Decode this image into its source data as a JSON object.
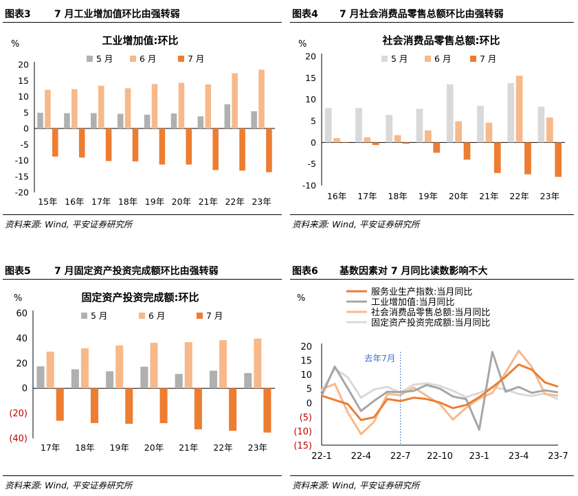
{
  "panels": [
    {
      "label": "图表3",
      "heading": "7 月工业增加值环比由强转弱",
      "source": "资料来源: Wind, 平安证券研究所",
      "chart_data": {
        "type": "bar",
        "title": "工业增加值:环比",
        "unit": "%",
        "categories": [
          "15年",
          "16年",
          "17年",
          "18年",
          "19年",
          "20年",
          "21年",
          "22年",
          "23年"
        ],
        "series": [
          {
            "name": "5 月",
            "color": "#b0b0b0",
            "values": [
              4.9,
              4.8,
              4.8,
              4.6,
              4.3,
              4.7,
              3.8,
              7.6,
              5.4
            ]
          },
          {
            "name": "6 月",
            "color": "#f7b98a",
            "values": [
              12.1,
              12.3,
              13.4,
              12.6,
              13.9,
              14.3,
              13.8,
              17.3,
              18.4
            ]
          },
          {
            "name": "7 月",
            "color": "#ed7d31",
            "values": [
              -8.8,
              -9.1,
              -10.2,
              -10.3,
              -11.3,
              -11.3,
              -13.0,
              -13.2,
              -13.7
            ]
          }
        ],
        "ylim": [
          -20,
          20
        ],
        "yticks": [
          "20",
          "15",
          "10",
          "5",
          "0",
          "-5",
          "-10",
          "-15",
          "-20"
        ]
      }
    },
    {
      "label": "图表4",
      "heading": "7 月社会消费品零售总额环比由强转弱",
      "source": "资料来源: Wind, 平安证券研究所",
      "chart_data": {
        "type": "bar",
        "title": "社会消费品零售总额:环比",
        "unit": "%",
        "categories": [
          "16年",
          "17年",
          "18年",
          "19年",
          "20年",
          "21年",
          "22年",
          "23年"
        ],
        "series": [
          {
            "name": "5 月",
            "color": "#d9d9d9",
            "values": [
              8.0,
              8.0,
              6.4,
              7.8,
              13.5,
              8.5,
              13.8,
              8.3
            ]
          },
          {
            "name": "6 月",
            "color": "#f7b98a",
            "values": [
              1.0,
              1.2,
              1.7,
              2.8,
              4.9,
              4.6,
              15.5,
              5.8
            ]
          },
          {
            "name": "7 月",
            "color": "#ed7d31",
            "values": [
              0,
              -0.6,
              -0.3,
              -2.4,
              -4.0,
              -7.1,
              -7.4,
              -8.0
            ]
          }
        ],
        "ylim": [
          -10,
          20
        ],
        "yticks": [
          "20",
          "15",
          "10",
          "5",
          "0",
          "-5",
          "-10"
        ]
      }
    },
    {
      "label": "图表5",
      "heading": "7 月固定资产投资完成额环比由强转弱",
      "source": "资料来源: Wind, 平安证券研究所",
      "chart_data": {
        "type": "bar",
        "title": "固定资产投资完成额:环比",
        "unit": "%",
        "categories": [
          "17年",
          "18年",
          "19年",
          "20年",
          "21年",
          "22年",
          "23年"
        ],
        "series": [
          {
            "name": "5 月",
            "color": "#b0b0b0",
            "values": [
              17.6,
              15.2,
              13.6,
              17.3,
              11.5,
              14.1,
              12.2
            ]
          },
          {
            "name": "6 月",
            "color": "#f7b98a",
            "values": [
              29.3,
              32.0,
              34.3,
              36.4,
              36.9,
              38.5,
              39.8
            ]
          },
          {
            "name": "7 月",
            "color": "#ed7d31",
            "values": [
              -26.0,
              -27.8,
              -28.4,
              -27.9,
              -32.8,
              -34.0,
              -35.4
            ]
          }
        ],
        "ylim": [
          -40,
          60
        ],
        "yticks": [
          "60",
          "40",
          "20",
          "0",
          "(20)",
          "(40)"
        ]
      }
    },
    {
      "label": "图表6",
      "heading": "基数因素对 7 月同比读数影响不大",
      "source": "资料来源: Wind, 平安证券研究所",
      "chart_data": {
        "type": "line",
        "unit": "%",
        "annotation": "去年7月",
        "x": [
          "22-1",
          "22-2",
          "22-3",
          "22-4",
          "22-5",
          "22-6",
          "22-7",
          "22-8",
          "22-9",
          "22-10",
          "22-11",
          "22-12",
          "23-1",
          "23-2",
          "23-3",
          "23-4",
          "23-5",
          "23-6",
          "23-7"
        ],
        "xticks": [
          "22-1",
          "22-4",
          "22-7",
          "22-10",
          "23-1",
          "23-4",
          "23-7"
        ],
        "ylim": [
          -15,
          20
        ],
        "yticks": [
          "20",
          "15",
          "10",
          "5",
          "0",
          "(5)",
          "(10)",
          "(15)"
        ],
        "series": [
          {
            "name": "服务业生产指数:当月同比",
            "color": "#ed7d31",
            "values": [
              2.5,
              1.0,
              -0.5,
              -6.1,
              -5.1,
              1.3,
              0.6,
              1.8,
              1.3,
              0.1,
              -1.9,
              -0.8,
              2.0,
              5.5,
              9.2,
              13.5,
              11.7,
              7.2,
              5.7
            ]
          },
          {
            "name": "工业增加值:当月同比",
            "color": "#a6a6a6",
            "values": [
              2.5,
              12.8,
              5.0,
              -2.9,
              0.7,
              3.9,
              3.8,
              4.2,
              6.3,
              5.0,
              2.2,
              1.3,
              -9.5,
              18.0,
              3.9,
              5.6,
              3.5,
              4.4,
              3.7
            ]
          },
          {
            "name": "社会消费品零售总额:当月同比",
            "color": "#f7b98a",
            "values": [
              4.7,
              6.7,
              -3.5,
              -11.1,
              -6.7,
              3.1,
              2.7,
              5.4,
              2.5,
              -0.5,
              -5.9,
              -1.8,
              1.5,
              3.5,
              10.6,
              18.4,
              12.7,
              3.1,
              2.5
            ]
          },
          {
            "name": "固定资产投资完成额:当月同比",
            "color": "#d9d9d9",
            "values": [
              4.0,
              12.0,
              9.0,
              1.8,
              4.7,
              5.6,
              3.6,
              6.4,
              6.9,
              6.0,
              4.2,
              2.0,
              3.5,
              5.5,
              4.7,
              3.1,
              2.4,
              3.3,
              1.2
            ]
          }
        ]
      }
    }
  ]
}
